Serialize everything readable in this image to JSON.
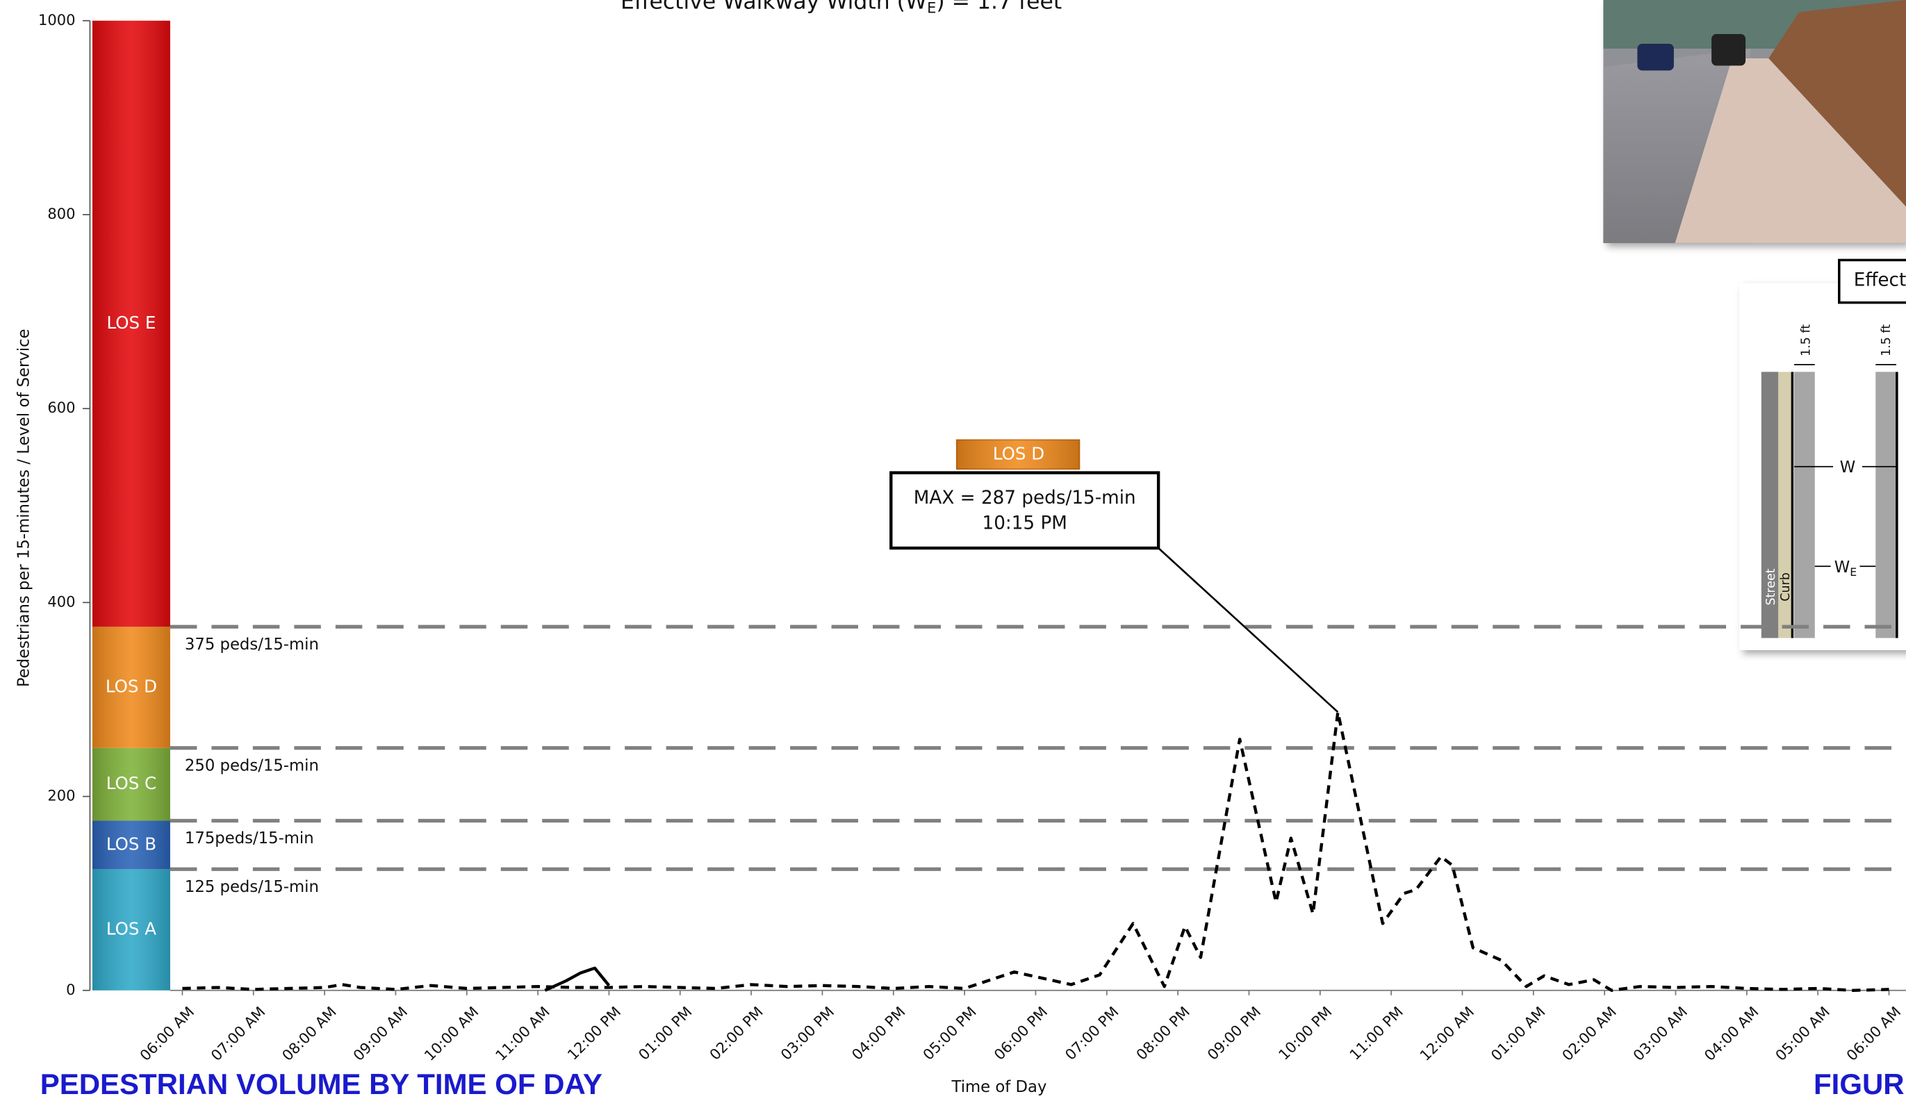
{
  "chart_data": {
    "type": "line",
    "title": "Effective Walkway Width (W",
    "title_subscript": "E",
    "title_suffix": ") = 1.7 feet",
    "ylabel": "Pedestrians per 15-minutes / Level of Service",
    "xlabel": "Time of Day",
    "ylim": [
      0,
      1000
    ],
    "yticks": [
      0,
      200,
      400,
      600,
      800,
      1000
    ],
    "xlim": [
      0,
      24
    ],
    "xticks": [
      {
        "value": 0,
        "label": "06:00 AM"
      },
      {
        "value": 1,
        "label": "07:00 AM"
      },
      {
        "value": 2,
        "label": "08:00 AM"
      },
      {
        "value": 3,
        "label": "09:00 AM"
      },
      {
        "value": 4,
        "label": "10:00 AM"
      },
      {
        "value": 5,
        "label": "11:00 AM"
      },
      {
        "value": 6,
        "label": "12:00 PM"
      },
      {
        "value": 7,
        "label": "01:00 PM"
      },
      {
        "value": 8,
        "label": "02:00 PM"
      },
      {
        "value": 9,
        "label": "03:00 PM"
      },
      {
        "value": 10,
        "label": "04:00 PM"
      },
      {
        "value": 11,
        "label": "05:00 PM"
      },
      {
        "value": 12,
        "label": "06:00 PM"
      },
      {
        "value": 13,
        "label": "07:00 PM"
      },
      {
        "value": 14,
        "label": "08:00 PM"
      },
      {
        "value": 15,
        "label": "09:00 PM"
      },
      {
        "value": 16,
        "label": "10:00 PM"
      },
      {
        "value": 17,
        "label": "11:00 PM"
      },
      {
        "value": 18,
        "label": "12:00 AM"
      },
      {
        "value": 19,
        "label": "01:00 AM"
      },
      {
        "value": 20,
        "label": "02:00 AM"
      },
      {
        "value": 21,
        "label": "03:00 AM"
      },
      {
        "value": 22,
        "label": "04:00 AM"
      },
      {
        "value": 23,
        "label": "05:00 AM"
      },
      {
        "value": 24,
        "label": "06:00 AM"
      }
    ],
    "series": [
      {
        "color": "#000000",
        "dashed": true,
        "x": [
          0,
          0.5,
          1,
          1.5,
          2,
          2.25,
          2.5,
          3,
          3.5,
          4,
          4.5,
          5,
          5.5,
          6,
          6.5,
          7,
          7.5,
          8,
          8.5,
          9,
          9.5,
          10,
          10.5,
          11,
          11.7,
          12.5,
          12.9,
          13.37,
          13.81,
          14.1,
          14.32,
          14.87,
          15.38,
          15.59,
          15.9,
          16.25,
          16.88,
          17.18,
          17.35,
          17.7,
          17.86,
          18.15,
          18.55,
          18.9,
          19.15,
          19.5,
          19.85,
          20.1,
          20.5,
          21,
          21.5,
          22,
          22.5,
          23,
          23.5,
          24
        ],
        "values": [
          2,
          3,
          1,
          2,
          3,
          6,
          3,
          1,
          5,
          2,
          3,
          4,
          3,
          3,
          4,
          3,
          2,
          6,
          4,
          5,
          4,
          2,
          4,
          2,
          19,
          6,
          16,
          69,
          4,
          66,
          34,
          259,
          91,
          157,
          79,
          287,
          69,
          100,
          104,
          138,
          129,
          44,
          31,
          4,
          15,
          6,
          11,
          0,
          4,
          3,
          4,
          2,
          1,
          2,
          0,
          1
        ]
      },
      {
        "color": "#000000",
        "dashed": false,
        "x": [
          5.1,
          5.4,
          5.6,
          5.8,
          6.0
        ],
        "values": [
          0,
          10,
          18,
          23,
          5
        ]
      }
    ],
    "los_levels": [
      {
        "name": "LOS A",
        "value": 125,
        "color": "#2fa9c9"
      },
      {
        "name": "LOS B",
        "value": 50,
        "color": "#2a63b8"
      },
      {
        "name": "LOS C",
        "value": 75,
        "color": "#7fb23a"
      },
      {
        "name": "LOS D",
        "value": 125,
        "color": "#f08a1c"
      },
      {
        "name": "LOS E",
        "value": 625,
        "color": "#e3090d"
      }
    ],
    "thresholds": [
      {
        "value": 375,
        "label": "375 peds/15-min"
      },
      {
        "value": 250,
        "label": "250 peds/15-min"
      },
      {
        "value": 175,
        "label": "175peds/15-min"
      },
      {
        "value": 125,
        "label": "125 peds/15-min"
      }
    ],
    "annotation": {
      "badge": "LOS D",
      "line1": "MAX = 287 peds/15-min",
      "line2": "10:15 PM",
      "x": 16.25,
      "value": 287
    },
    "footer_left": "PEDESTRIAN VOLUME BY TIME OF DAY",
    "footer_right": "FIGUR",
    "diagram": {
      "box_label": "Effecti",
      "dim1": "1.5 ft",
      "dim2": "1.5 ft",
      "w": "W",
      "we": "W",
      "we_sub": "E",
      "street": "Street",
      "curb": "Curb"
    }
  }
}
